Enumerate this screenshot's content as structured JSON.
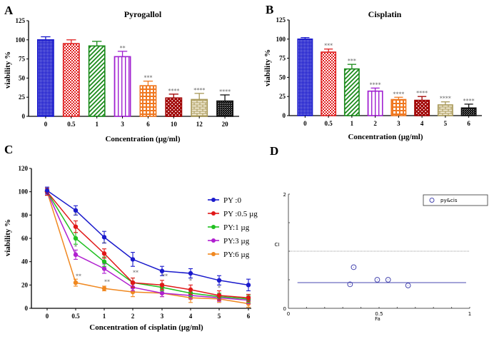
{
  "chart_data": [
    {
      "panel": "A",
      "type": "bar",
      "title": "Pyrogallol",
      "xlabel": "Concentration (µg/ml)",
      "ylabel": "viability %",
      "ylim": [
        0,
        125
      ],
      "yticks": [
        "0",
        "25",
        "50",
        "75",
        "100",
        "125"
      ],
      "categories": [
        "0",
        "0.5",
        "1",
        "3",
        "6",
        "10",
        "12",
        "20"
      ],
      "values": [
        100,
        95,
        92,
        78,
        40,
        24,
        22,
        20
      ],
      "errors": [
        4,
        5,
        6,
        7,
        6,
        5,
        8,
        8
      ],
      "significance": [
        "",
        "",
        "",
        "**",
        "***",
        "****",
        "****",
        "****"
      ],
      "colors": [
        "#1a1acc",
        "#e02020",
        "#1a8a1a",
        "#a020d0",
        "#f07820",
        "#a00000",
        "#a89858",
        "#111111"
      ],
      "patterns": [
        "dense-grid",
        "checker",
        "diagonal",
        "vertical",
        "grid",
        "dots",
        "brick",
        "noise"
      ]
    },
    {
      "panel": "B",
      "type": "bar",
      "title": "Cisplatin",
      "xlabel": "Concentration (µg/ml)",
      "ylabel": "viability %",
      "ylim": [
        0,
        125
      ],
      "yticks": [
        "0",
        "25",
        "50",
        "75",
        "100",
        "125"
      ],
      "categories": [
        "0",
        "0.5",
        "1",
        "2",
        "3",
        "4",
        "5",
        "6"
      ],
      "values": [
        100,
        83,
        61,
        32,
        21,
        20,
        14,
        10
      ],
      "errors": [
        2,
        4,
        6,
        4,
        3,
        5,
        4,
        5
      ],
      "significance": [
        "",
        "***",
        "***",
        "****",
        "****",
        "****",
        "****",
        "****"
      ],
      "colors": [
        "#1a1acc",
        "#e02020",
        "#1a8a1a",
        "#a020d0",
        "#f07820",
        "#a00000",
        "#a89858",
        "#111111"
      ],
      "patterns": [
        "dense-grid",
        "checker",
        "diagonal",
        "vertical",
        "grid",
        "dots",
        "brick",
        "noise"
      ]
    },
    {
      "panel": "C",
      "type": "line",
      "xlabel": "Concentration of cisplatin (µg/ml)",
      "ylabel": "viability %",
      "ylim": [
        0,
        120
      ],
      "yticks": [
        "0",
        "20",
        "40",
        "60",
        "80",
        "100",
        "120"
      ],
      "categories": [
        "0",
        "0.5",
        "1",
        "2",
        "3",
        "4",
        "5",
        "6"
      ],
      "legend_position": "right",
      "series": [
        {
          "name": "PY :0",
          "color": "#1a1acc",
          "values": [
            101,
            84,
            61,
            42,
            32,
            30,
            24,
            20
          ],
          "errors": [
            3,
            4,
            5,
            6,
            4,
            4,
            4,
            5
          ]
        },
        {
          "name": "PY :0.5 µg",
          "color": "#e01818",
          "values": [
            100,
            70,
            47,
            22,
            20,
            16,
            11,
            9
          ],
          "errors": [
            3,
            5,
            4,
            4,
            4,
            4,
            4,
            3
          ]
        },
        {
          "name": "PY:1 µg",
          "color": "#20c020",
          "values": [
            100,
            60,
            40,
            22,
            18,
            13,
            10,
            8
          ],
          "errors": [
            3,
            5,
            4,
            4,
            3,
            3,
            3,
            3
          ]
        },
        {
          "name": "PY:3 µg",
          "color": "#b020d0",
          "values": [
            100,
            46,
            34,
            18,
            13,
            11,
            9,
            7
          ],
          "errors": [
            3,
            4,
            4,
            3,
            3,
            3,
            3,
            3
          ]
        },
        {
          "name": "PY:6 µg",
          "color": "#f08820",
          "values": [
            100,
            22,
            17,
            14,
            13,
            9,
            8,
            4
          ],
          "errors": [
            3,
            3,
            2,
            4,
            3,
            4,
            3,
            3
          ]
        }
      ],
      "annotations": [
        {
          "x": "0.5",
          "text": "*",
          "y": 78
        },
        {
          "x": "0.5",
          "text": "*",
          "y": 51
        },
        {
          "x": "0.5",
          "text": "**",
          "y": 26
        },
        {
          "x": "1",
          "text": "*",
          "y": 54
        },
        {
          "x": "1",
          "text": "**",
          "y": 21
        },
        {
          "x": "2",
          "text": "**",
          "y": 29
        },
        {
          "x": "3",
          "text": "**",
          "y": 26
        },
        {
          "x": "4",
          "text": "*",
          "y": 22
        },
        {
          "x": "5",
          "text": "*",
          "y": 16
        }
      ]
    },
    {
      "panel": "D",
      "type": "scatter",
      "xlabel": "Fa",
      "ylabel": "CI",
      "xlim": [
        0,
        1
      ],
      "ylim": [
        0,
        2
      ],
      "xticks": [
        "0",
        "0.5",
        "1"
      ],
      "yticks": [
        "0",
        "2"
      ],
      "reference_line": 1,
      "fit_line_value": 0.45,
      "fit_line_range": [
        0.05,
        0.98
      ],
      "legend": "py&cis",
      "legend_position": "top-right",
      "points": [
        {
          "x": 0.36,
          "y": 0.72
        },
        {
          "x": 0.34,
          "y": 0.42
        },
        {
          "x": 0.49,
          "y": 0.5
        },
        {
          "x": 0.55,
          "y": 0.5
        },
        {
          "x": 0.66,
          "y": 0.4
        }
      ],
      "color": "#4848b0"
    }
  ],
  "panel_letters": [
    "A",
    "B",
    "C",
    "D"
  ]
}
